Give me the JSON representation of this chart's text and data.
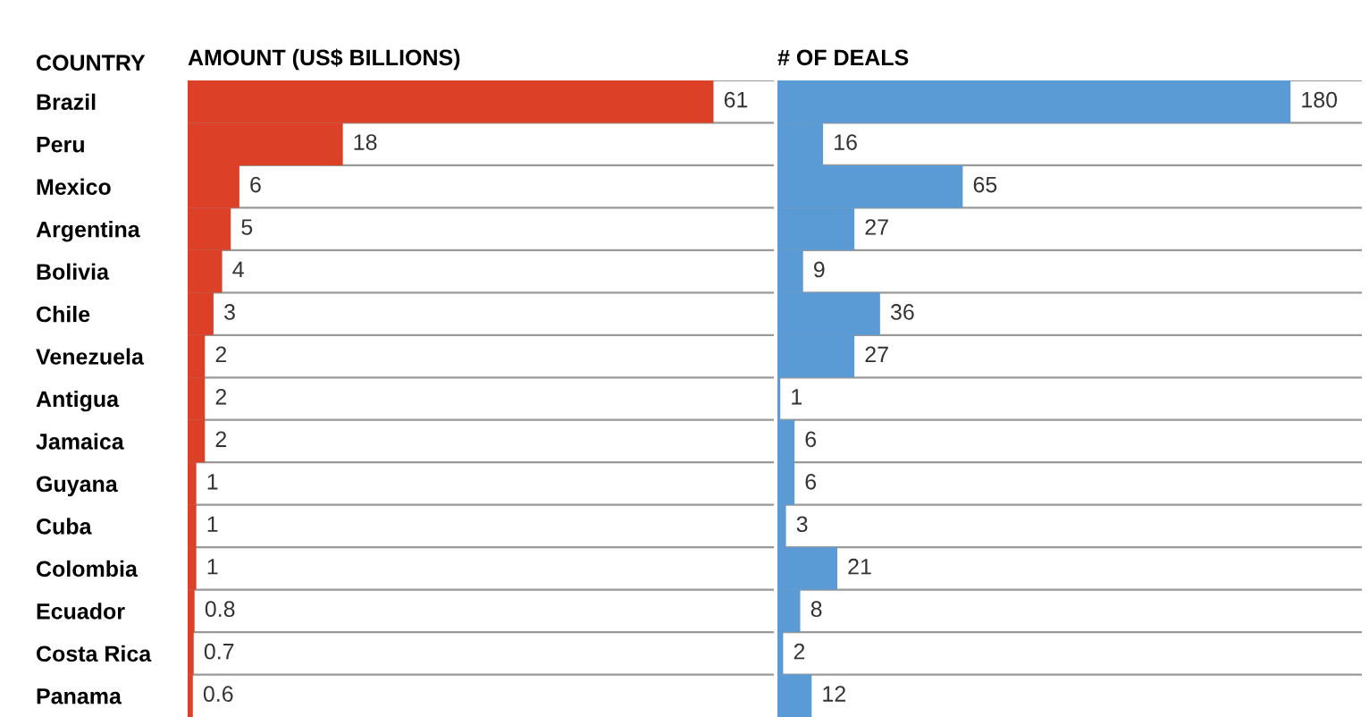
{
  "chart_data": [
    {
      "type": "bar",
      "orientation": "horizontal",
      "title": "AMOUNT (US$ BILLIONS)",
      "ylabel": "COUNTRY",
      "categories": [
        "Brazil",
        "Peru",
        "Mexico",
        "Argentina",
        "Bolivia",
        "Chile",
        "Venezuela",
        "Antigua",
        "Jamaica",
        "Guyana",
        "Cuba",
        "Colombia",
        "Ecuador",
        "Costa Rica",
        "Panama"
      ],
      "values": [
        61,
        18,
        6,
        5,
        4,
        3,
        2,
        2,
        2,
        1,
        1,
        1,
        0.8,
        0.7,
        0.6
      ],
      "color": "#dc4128",
      "xlim": [
        0,
        68
      ],
      "data_labels": true,
      "tick_labels": "y",
      "grid": "y"
    },
    {
      "type": "bar",
      "orientation": "horizontal",
      "title": "# OF DEALS",
      "values": [
        180,
        16,
        65,
        27,
        9,
        36,
        27,
        1,
        6,
        6,
        3,
        21,
        8,
        2,
        12
      ],
      "color": "#5b9bd5",
      "xlim": [
        0,
        205
      ],
      "data_labels": true,
      "tick_labels": false,
      "grid": "y"
    }
  ]
}
